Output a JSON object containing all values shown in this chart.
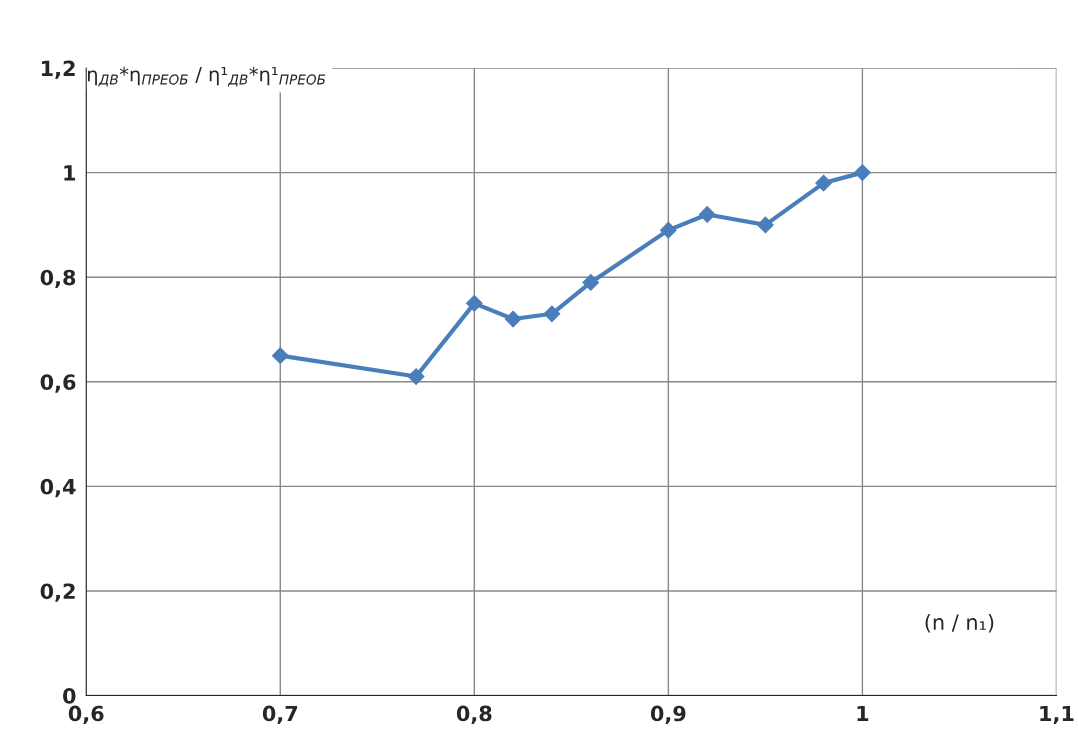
{
  "chart_data": {
    "type": "line",
    "ylabel": "η$_{ДВ}$*η$_{ПРЕОБ}$ / η¹$_{ДВ}$*η¹$_{ПРЕОБ}$",
    "xlabel": "(n / n₁)",
    "x": [
      0.7,
      0.77,
      0.8,
      0.82,
      0.84,
      0.86,
      0.9,
      0.92,
      0.95,
      0.98,
      1.0
    ],
    "series": [
      {
        "color": "#4a7ebb",
        "values": [
          0.65,
          0.61,
          0.75,
          0.72,
          0.73,
          0.79,
          0.89,
          0.92,
          0.9,
          0.98,
          1.0
        ]
      }
    ],
    "xlim": [
      0.6,
      1.1
    ],
    "xticks": [
      {
        "value": 0.6,
        "label": "0,6"
      },
      {
        "value": 0.7,
        "label": "0,7"
      },
      {
        "value": 0.8,
        "label": "0,8"
      },
      {
        "value": 0.9,
        "label": "0,9"
      },
      1,
      {
        "value": 1.1,
        "label": "1,1"
      }
    ],
    "ylim": [
      0,
      1.2
    ],
    "yticks": [
      0,
      {
        "value": 0.2,
        "label": "0,2"
      },
      {
        "value": 0.4,
        "label": "0,4"
      },
      {
        "value": 0.6,
        "label": "0,6"
      },
      {
        "value": 0.8,
        "label": "0,8"
      },
      1,
      {
        "value": 1.2,
        "label": "1,2"
      }
    ],
    "grid": true,
    "marker": "diamond",
    "line_style": "solid",
    "legend": false
  }
}
